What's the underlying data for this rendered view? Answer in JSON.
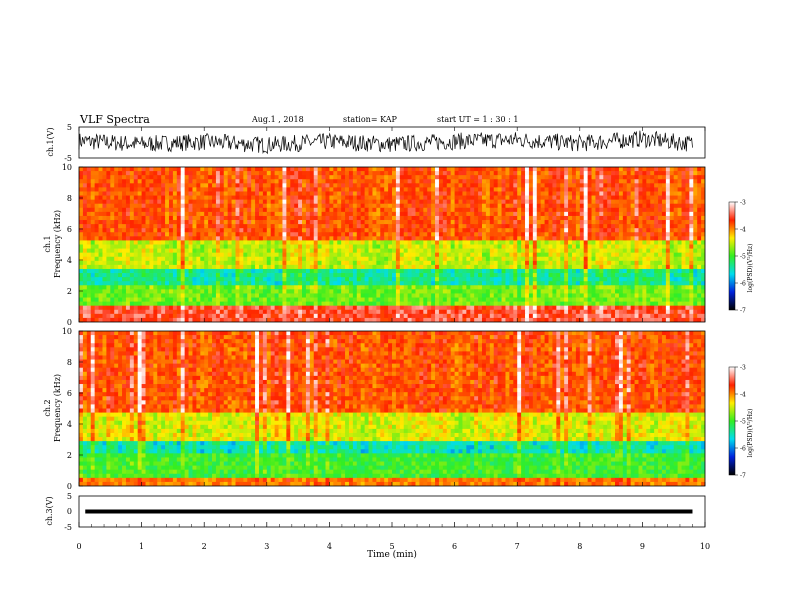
{
  "header": {
    "title": "VLF Spectra",
    "date": "Aug.1 , 2018",
    "station": "station= KAP",
    "start_ut": "start UT =  1 : 30 : 1"
  },
  "colorbar": {
    "label": "log(PSD)(V²/Hz)",
    "ticks": [
      "-3",
      "-4",
      "-5",
      "-6",
      "-7"
    ],
    "colors": [
      "#ffffff",
      "#ff2200",
      "#ffee00",
      "#33ee22",
      "#00ddee",
      "#0022dd",
      "#000000"
    ]
  },
  "chart_data": [
    {
      "type": "line",
      "panel": "ch1-waveform",
      "ylabel": "ch.1(V)",
      "ylim": [
        -5,
        5
      ],
      "yticks": [
        "5",
        "-5"
      ],
      "xlim": [
        0,
        10
      ],
      "series": [
        {
          "x": [
            0,
            1,
            2,
            3,
            4,
            5,
            6,
            7,
            8,
            9,
            9.8
          ],
          "values": [
            0.5,
            -0.5,
            0.2,
            -0.8,
            0.3,
            -0.6,
            0.4,
            0.9,
            -0.3,
            1.2,
            -0.4
          ]
        }
      ]
    },
    {
      "type": "heatmap",
      "panel": "ch1-spectrogram",
      "ylabel": "ch.1 Frequency (kHz)",
      "ylim": [
        0,
        10
      ],
      "yticks": [
        "10",
        "8",
        "6",
        "4",
        "2",
        "0"
      ],
      "xlim": [
        0,
        10
      ],
      "bands": [
        {
          "from_khz": 5.3,
          "to_khz": 10,
          "log_psd": -3.8
        },
        {
          "from_khz": 3.5,
          "to_khz": 5.3,
          "log_psd": -4.7
        },
        {
          "from_khz": 2.3,
          "to_khz": 3.5,
          "log_psd": -5.6
        },
        {
          "from_khz": 1.0,
          "to_khz": 2.3,
          "log_psd": -5.0
        },
        {
          "from_khz": 0.0,
          "to_khz": 1.0,
          "log_psd": -3.5
        }
      ]
    },
    {
      "type": "heatmap",
      "panel": "ch2-spectrogram",
      "ylabel": "ch.2 Frequency (kHz)",
      "ylim": [
        0,
        10
      ],
      "yticks": [
        "10",
        "8",
        "6",
        "4",
        "2",
        "0"
      ],
      "xlim": [
        0,
        10
      ],
      "bands": [
        {
          "from_khz": 4.8,
          "to_khz": 10,
          "log_psd": -3.8
        },
        {
          "from_khz": 3.0,
          "to_khz": 4.8,
          "log_psd": -4.6
        },
        {
          "from_khz": 2.0,
          "to_khz": 3.0,
          "log_psd": -5.7
        },
        {
          "from_khz": 0.6,
          "to_khz": 2.0,
          "log_psd": -5.2
        },
        {
          "from_khz": 0.0,
          "to_khz": 0.6,
          "log_psd": -4.0
        }
      ]
    },
    {
      "type": "line",
      "panel": "ch3-waveform",
      "ylabel": "ch.3(V)",
      "ylim": [
        -5,
        5
      ],
      "yticks": [
        "5",
        "0",
        "-5"
      ],
      "xlabel": "Time (min)",
      "xlim": [
        0,
        10
      ],
      "xticks": [
        "0",
        "1",
        "2",
        "3",
        "4",
        "5",
        "6",
        "7",
        "8",
        "9",
        "10"
      ],
      "series": [
        {
          "x": [
            0.1,
            9.8
          ],
          "values": [
            0,
            0
          ]
        }
      ]
    }
  ]
}
